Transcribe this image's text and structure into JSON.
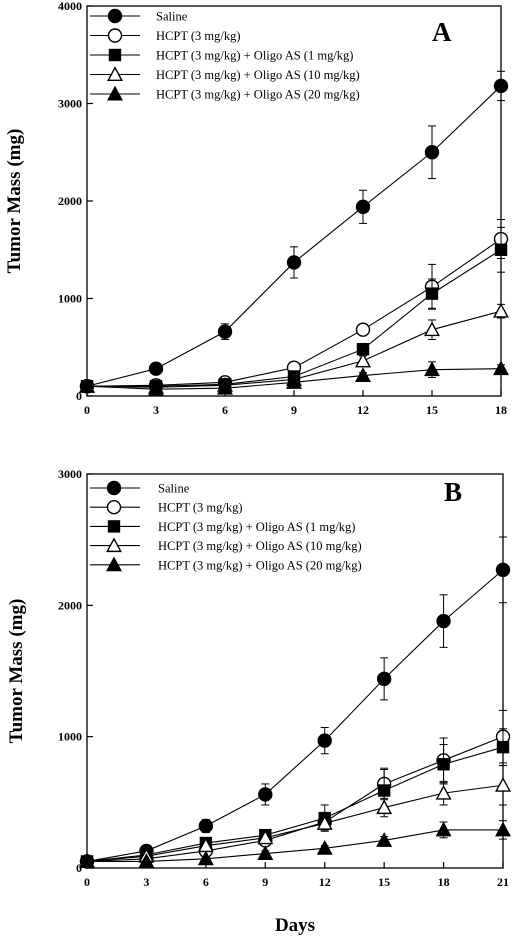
{
  "chart_data": [
    {
      "type": "line",
      "panel_label": "A",
      "ylabel": "Tumor Mass (mg)",
      "xlabel": "",
      "xlim": [
        0,
        18
      ],
      "ylim": [
        0,
        4000
      ],
      "x_ticks": [
        0,
        3,
        6,
        9,
        12,
        15,
        18
      ],
      "y_ticks": [
        0,
        1000,
        2000,
        3000,
        4000
      ],
      "legend_position": "top-left",
      "grid": false,
      "x": [
        0,
        3,
        6,
        9,
        12,
        15,
        18
      ],
      "series": [
        {
          "name": "Saline",
          "marker": "circle-filled",
          "values": [
            100,
            280,
            660,
            1370,
            1940,
            2500,
            3180
          ],
          "errors": [
            0,
            0,
            80,
            160,
            170,
            270,
            150
          ]
        },
        {
          "name": "HCPT (3 mg/kg)",
          "marker": "circle-open",
          "values": [
            100,
            110,
            140,
            290,
            680,
            1120,
            1610
          ],
          "errors": [
            0,
            0,
            20,
            30,
            40,
            230,
            200
          ]
        },
        {
          "name": "HCPT (3 mg/kg) + Oligo AS (1 mg/kg)",
          "marker": "square-filled",
          "values": [
            100,
            100,
            120,
            200,
            480,
            1050,
            1500
          ],
          "errors": [
            0,
            0,
            20,
            30,
            40,
            150,
            230
          ]
        },
        {
          "name": "HCPT (3 mg/kg) + Oligo AS (10 mg/kg)",
          "marker": "triangle-open",
          "values": [
            100,
            90,
            110,
            170,
            360,
            680,
            870
          ],
          "errors": [
            0,
            0,
            20,
            30,
            50,
            100,
            70
          ]
        },
        {
          "name": "HCPT (3 mg/kg) + Oligo AS (20 mg/kg)",
          "marker": "triangle-filled",
          "values": [
            100,
            70,
            80,
            140,
            210,
            270,
            280
          ],
          "errors": [
            0,
            0,
            10,
            20,
            30,
            80,
            40
          ]
        }
      ]
    },
    {
      "type": "line",
      "panel_label": "B",
      "ylabel": "Tumor Mass (mg)",
      "xlabel": "Days",
      "xlim": [
        0,
        21
      ],
      "ylim": [
        0,
        3000
      ],
      "x_ticks": [
        0,
        3,
        6,
        9,
        12,
        15,
        18,
        21
      ],
      "y_ticks": [
        0,
        1000,
        2000,
        3000
      ],
      "legend_position": "top-left",
      "grid": false,
      "x": [
        0,
        3,
        6,
        9,
        12,
        15,
        18,
        21
      ],
      "series": [
        {
          "name": "Saline",
          "marker": "circle-filled",
          "values": [
            50,
            130,
            320,
            560,
            970,
            1440,
            1880,
            2270
          ],
          "errors": [
            0,
            0,
            50,
            80,
            100,
            160,
            200,
            250
          ]
        },
        {
          "name": "HCPT (3 mg/kg)",
          "marker": "circle-open",
          "values": [
            50,
            70,
            130,
            210,
            350,
            640,
            820,
            1000
          ],
          "errors": [
            0,
            0,
            30,
            40,
            60,
            120,
            170,
            200
          ]
        },
        {
          "name": "HCPT (3 mg/kg) + Oligo AS (1 mg/kg)",
          "marker": "square-filled",
          "values": [
            50,
            100,
            190,
            250,
            380,
            590,
            790,
            920
          ],
          "errors": [
            0,
            0,
            30,
            40,
            100,
            160,
            150,
            140
          ]
        },
        {
          "name": "HCPT (3 mg/kg) + Oligo AS (10 mg/kg)",
          "marker": "triangle-open",
          "values": [
            50,
            90,
            170,
            230,
            340,
            460,
            570,
            630
          ],
          "errors": [
            0,
            0,
            20,
            30,
            50,
            70,
            90,
            150
          ]
        },
        {
          "name": "HCPT (3 mg/kg) + Oligo AS (20 mg/kg)",
          "marker": "triangle-filled",
          "values": [
            50,
            50,
            70,
            110,
            150,
            210,
            290,
            290
          ],
          "errors": [
            0,
            0,
            10,
            20,
            20,
            30,
            60,
            70
          ]
        }
      ]
    }
  ]
}
